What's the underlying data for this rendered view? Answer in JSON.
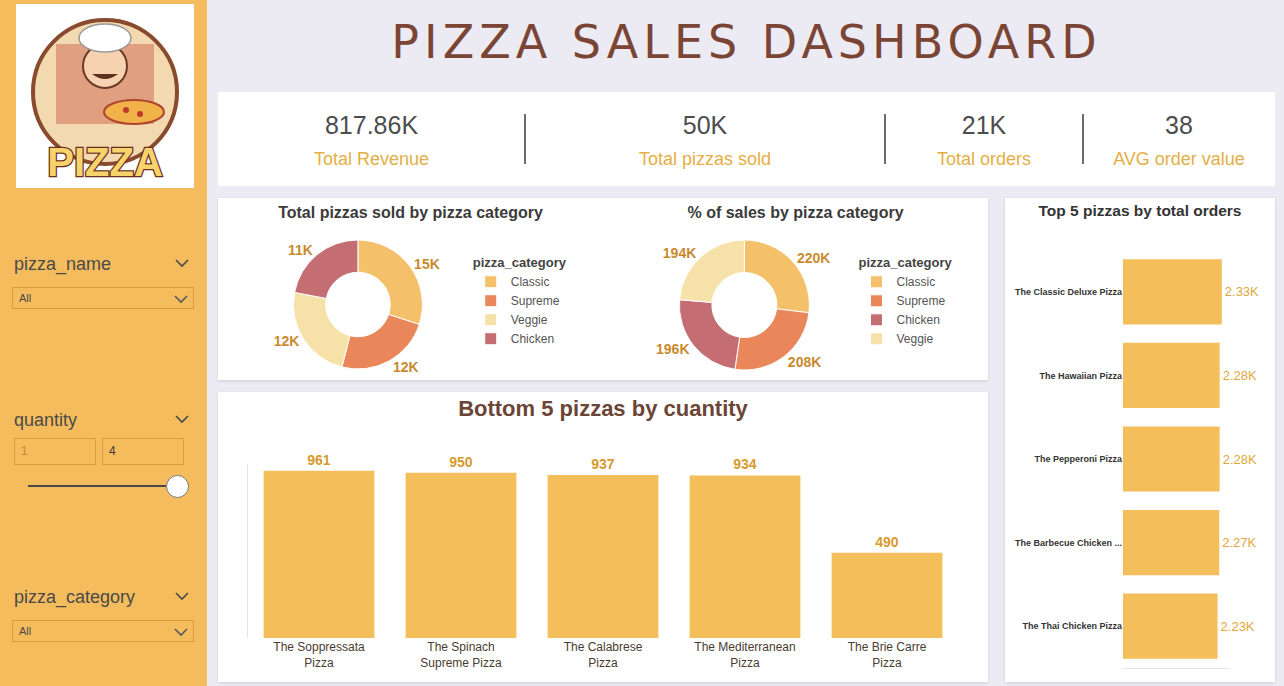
{
  "title": "PIZZA SALES DASHBOARD",
  "logo_text": "PIZZA",
  "kpis": [
    {
      "value": "817.86K",
      "label": "Total Revenue"
    },
    {
      "value": "50K",
      "label": "Total pizzas sold"
    },
    {
      "value": "21K",
      "label": "Total orders"
    },
    {
      "value": "38",
      "label": "AVG order value"
    }
  ],
  "filters": [
    {
      "name": "pizza_name",
      "selected": "All"
    },
    {
      "name": "quantity",
      "min": 1,
      "max": 4
    },
    {
      "name": "pizza_category",
      "selected": "All"
    }
  ],
  "chart_data": [
    {
      "type": "pie",
      "title": "Total pizzas sold by pizza category",
      "legend_title": "pizza_category",
      "categories": [
        "Classic",
        "Supreme",
        "Veggie",
        "Chicken"
      ],
      "values": [
        15000,
        12000,
        12000,
        11000
      ],
      "value_labels": [
        "15K",
        "12K",
        "12K",
        "11K"
      ],
      "colors": [
        "#F4C06A",
        "#E9875A",
        "#F6E2A8",
        "#C46E74"
      ],
      "data_labels": true,
      "legend": "right"
    },
    {
      "type": "pie",
      "title": "% of sales by pizza category",
      "legend_title": "pizza_category",
      "categories": [
        "Classic",
        "Supreme",
        "Chicken",
        "Veggie"
      ],
      "values": [
        220000,
        208000,
        196000,
        194000
      ],
      "value_labels": [
        "220K",
        "208K",
        "196K",
        "194K"
      ],
      "colors": [
        "#F4C06A",
        "#E9875A",
        "#C46E74",
        "#F6E2A8"
      ],
      "data_labels": true,
      "legend": "right"
    },
    {
      "type": "bar",
      "title": "Bottom 5 pizzas by cuantity",
      "categories": [
        "The Soppressata Pizza",
        "The Spinach Supreme Pizza",
        "The Calabrese Pizza",
        "The Mediterranean Pizza",
        "The Brie Carre Pizza"
      ],
      "values": [
        961,
        950,
        937,
        934,
        490
      ],
      "color": "#F4BE5A",
      "ylim": [
        0,
        1000
      ],
      "grid": false,
      "data_labels": true,
      "tick_labels": "x"
    },
    {
      "type": "bar",
      "orientation": "horizontal",
      "title": "Top 5 pizzas by total orders",
      "categories": [
        "The Classic Deluxe Pizza",
        "The Hawaiian Pizza",
        "The Pepperoni Pizza",
        "The Barbecue Chicken ...",
        "The Thai Chicken Pizza"
      ],
      "values": [
        2330,
        2280,
        2280,
        2270,
        2230
      ],
      "value_labels": [
        "2.33K",
        "2.28K",
        "2.28K",
        "2.27K",
        "2.23K"
      ],
      "color": "#F4BE5A",
      "xlim": [
        0,
        2500
      ],
      "grid": false,
      "data_labels": true,
      "tick_labels": "y"
    }
  ]
}
